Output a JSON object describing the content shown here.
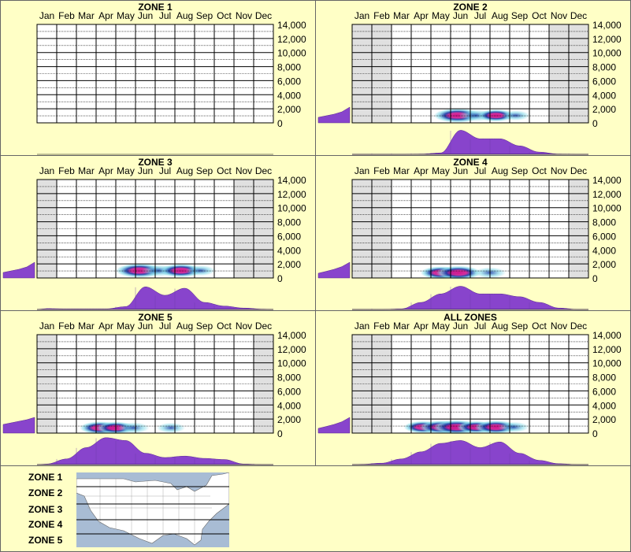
{
  "chart_data": {
    "type": "heatmap",
    "months": [
      "Jan",
      "Feb",
      "Mar",
      "Apr",
      "May",
      "Jun",
      "Jul",
      "Aug",
      "Sep",
      "Oct",
      "Nov",
      "Dec"
    ],
    "y_ticks": [
      "14,000",
      "12,000",
      "10,000",
      "8,000",
      "6,000",
      "4,000",
      "2,000",
      "0"
    ],
    "ylim": [
      0,
      14000
    ],
    "panels": [
      {
        "title": "ZONE 1",
        "has_data": false,
        "elev_dist": [],
        "month_curve": [],
        "heat_spots": []
      },
      {
        "title": "ZONE 2",
        "has_data": true,
        "shade_months": [
          0,
          1,
          10,
          11
        ],
        "elev_dist": [
          0.35,
          0.45,
          0.55,
          0.7,
          1.0
        ],
        "month_curve": [
          0,
          0,
          0,
          0.01,
          0.05,
          0.85,
          0.55,
          0.55,
          0.3,
          0.08,
          0.01,
          0
        ],
        "heat_spots": [
          {
            "month": 5.35,
            "elev": 600,
            "strength": 1.0
          },
          {
            "month": 6.3,
            "elev": 600,
            "strength": 0.45
          },
          {
            "month": 7.3,
            "elev": 600,
            "strength": 0.55
          },
          {
            "month": 8.3,
            "elev": 600,
            "strength": 0.15
          }
        ]
      },
      {
        "title": "ZONE 3",
        "has_data": true,
        "shade_months": [
          0,
          10,
          11
        ],
        "elev_dist": [
          0.35,
          0.45,
          0.55,
          0.7,
          1.0
        ],
        "month_curve": [
          0.03,
          0.02,
          0.02,
          0.02,
          0.1,
          0.8,
          0.5,
          0.75,
          0.25,
          0.12,
          0.05,
          0.01
        ],
        "heat_spots": [
          {
            "month": 5.2,
            "elev": 600,
            "strength": 1.0
          },
          {
            "month": 6.2,
            "elev": 600,
            "strength": 0.45
          },
          {
            "month": 7.3,
            "elev": 600,
            "strength": 0.8
          },
          {
            "month": 8.3,
            "elev": 600,
            "strength": 0.2
          }
        ]
      },
      {
        "title": "ZONE 4",
        "has_data": true,
        "shade_months": [
          0,
          1,
          11
        ],
        "elev_dist": [
          0.3,
          0.42,
          0.55,
          0.72,
          1.0
        ],
        "month_curve": [
          0,
          0,
          0.02,
          0.25,
          0.55,
          0.82,
          0.55,
          0.55,
          0.45,
          0.25,
          0.05,
          0
        ],
        "heat_spots": [
          {
            "month": 4.5,
            "elev": 300,
            "strength": 0.7
          },
          {
            "month": 5.4,
            "elev": 300,
            "strength": 0.9
          },
          {
            "month": 7.0,
            "elev": 300,
            "strength": 0.3
          }
        ]
      },
      {
        "title": "ZONE 5",
        "has_data": true,
        "shade_months": [
          0,
          11
        ],
        "elev_dist": [
          0.55,
          0.65,
          0.75,
          0.85,
          1.0
        ],
        "month_curve": [
          0.02,
          0.2,
          0.6,
          0.95,
          0.85,
          0.4,
          0.25,
          0.3,
          0.22,
          0.18,
          0.02,
          0
        ],
        "heat_spots": [
          {
            "month": 3.2,
            "elev": 300,
            "strength": 0.7
          },
          {
            "month": 4.0,
            "elev": 300,
            "strength": 0.6
          },
          {
            "month": 4.9,
            "elev": 300,
            "strength": 0.3
          },
          {
            "month": 6.8,
            "elev": 300,
            "strength": 0.15
          }
        ]
      },
      {
        "title": "ALL ZONES",
        "has_data": true,
        "shade_months": [
          0,
          1
        ],
        "elev_dist": [
          0.3,
          0.42,
          0.55,
          0.72,
          1.0
        ],
        "month_curve": [
          0.01,
          0.05,
          0.2,
          0.45,
          0.75,
          0.85,
          0.6,
          0.8,
          0.4,
          0.15,
          0.03,
          0
        ],
        "heat_spots": [
          {
            "month": 3.6,
            "elev": 400,
            "strength": 0.6
          },
          {
            "month": 4.5,
            "elev": 400,
            "strength": 0.8
          },
          {
            "month": 5.3,
            "elev": 400,
            "strength": 1.0
          },
          {
            "month": 6.3,
            "elev": 400,
            "strength": 0.6
          },
          {
            "month": 7.3,
            "elev": 400,
            "strength": 0.8
          },
          {
            "month": 8.2,
            "elev": 400,
            "strength": 0.25
          }
        ]
      }
    ]
  },
  "legend": {
    "zones": [
      "ZONE 1",
      "ZONE 2",
      "ZONE 3",
      "ZONE 4",
      "ZONE 5"
    ]
  },
  "colors": {
    "background": "#ffffc6",
    "grid_fill": "#ffffff",
    "shade": "#e0e0e0",
    "curve": "#8844cc",
    "heat_low": "#7fd8e8",
    "heat_mid": "#1f3fa8",
    "heat_high": "#d01890",
    "map_water": "#a8bcd4",
    "map_land": "#ffffff"
  },
  "icons": {
    "map": "us-zone-map-icon"
  }
}
